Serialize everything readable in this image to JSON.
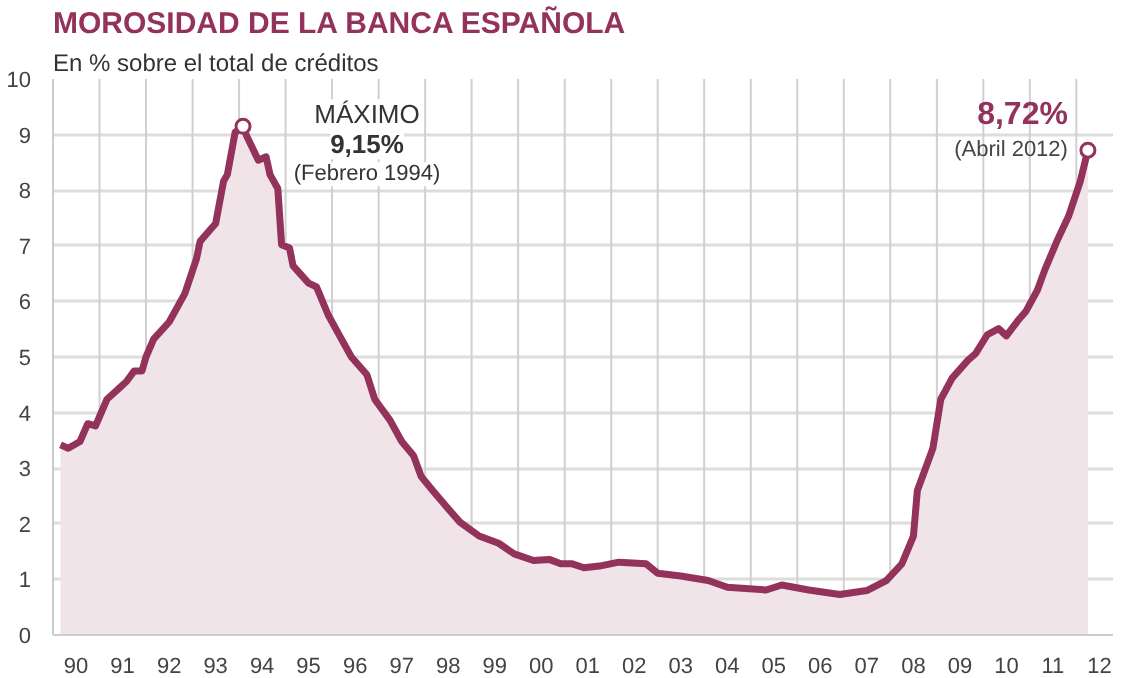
{
  "chart_data": {
    "type": "area",
    "title": "MOROSIDAD DE LA BANCA ESPAÑOLA",
    "subtitle": "En % sobre el total de créditos",
    "series": [
      {
        "color": "#93325a",
        "x": [
          "1990-03",
          "1990-05",
          "1990-08",
          "1990-10",
          "1990-12",
          "1991-03",
          "1991-06",
          "1991-08",
          "1991-10",
          "1991-12",
          "1992-01",
          "1992-03",
          "1992-07",
          "1992-11",
          "1993-02",
          "1993-03",
          "1993-07",
          "1993-09",
          "1993-10",
          "1993-12",
          "1994-02",
          "1994-03",
          "1994-06",
          "1994-08",
          "1994-09",
          "1994-11",
          "1994-12",
          "1995-02",
          "1995-03",
          "1995-07",
          "1995-09",
          "1995-12",
          "1996-03",
          "1996-06",
          "1996-10",
          "1996-12",
          "1997-04",
          "1997-07",
          "1997-10",
          "1997-12",
          "1998-03",
          "1998-06",
          "1998-10",
          "1999-03",
          "1999-08",
          "1999-12",
          "2000-05",
          "2000-09",
          "2000-12",
          "2001-03",
          "2001-06",
          "2001-10",
          "2002-03",
          "2002-10",
          "2003-01",
          "2003-07",
          "2004-02",
          "2004-07",
          "2005-05",
          "2005-09",
          "2006-04",
          "2006-12",
          "2007-07",
          "2007-12",
          "2008-04",
          "2008-07",
          "2008-08",
          "2008-12",
          "2009-02",
          "2009-05",
          "2009-09",
          "2009-11",
          "2010-02",
          "2010-05",
          "2010-07",
          "2010-10",
          "2010-12",
          "2011-03",
          "2011-05",
          "2011-08",
          "2011-11",
          "2012-02",
          "2012-04"
        ],
        "values": [
          3.42,
          3.36,
          3.48,
          3.8,
          3.76,
          4.24,
          4.43,
          4.56,
          4.75,
          4.75,
          5.0,
          5.32,
          5.63,
          6.14,
          6.77,
          7.08,
          7.4,
          8.16,
          8.28,
          9.04,
          9.15,
          8.98,
          8.54,
          8.6,
          8.28,
          8.03,
          7.02,
          6.96,
          6.64,
          6.33,
          6.26,
          5.76,
          5.38,
          5.0,
          4.68,
          4.24,
          3.86,
          3.48,
          3.23,
          2.85,
          2.6,
          2.35,
          2.03,
          1.78,
          1.65,
          1.46,
          1.34,
          1.36,
          1.28,
          1.28,
          1.21,
          1.24,
          1.31,
          1.28,
          1.11,
          1.06,
          0.98,
          0.86,
          0.81,
          0.9,
          0.81,
          0.73,
          0.8,
          0.98,
          1.28,
          1.78,
          2.6,
          3.36,
          4.24,
          4.62,
          4.94,
          5.06,
          5.4,
          5.51,
          5.38,
          5.66,
          5.82,
          6.2,
          6.58,
          7.08,
          7.53,
          8.16,
          8.72
        ]
      }
    ],
    "xlim": [
      "1990-01-01",
      "2012-10-15"
    ],
    "ylim": [
      0,
      10
    ],
    "yticks": [
      0,
      1,
      2,
      3,
      4,
      5,
      6,
      7,
      8,
      9,
      10
    ],
    "xticks": [
      {
        "value": "1990-07-01",
        "label": "90"
      },
      {
        "value": "1991-07-01",
        "label": "91"
      },
      {
        "value": "1992-07-01",
        "label": "92"
      },
      {
        "value": "1993-07-01",
        "label": "93"
      },
      {
        "value": "1994-07-01",
        "label": "94"
      },
      {
        "value": "1995-07-01",
        "label": "95"
      },
      {
        "value": "1996-07-01",
        "label": "96"
      },
      {
        "value": "1997-07-01",
        "label": "97"
      },
      {
        "value": "1998-07-01",
        "label": "98"
      },
      {
        "value": "1999-07-01",
        "label": "99"
      },
      {
        "value": "2000-07-01",
        "label": "00"
      },
      {
        "value": "2001-07-01",
        "label": "01"
      },
      {
        "value": "2002-07-01",
        "label": "02"
      },
      {
        "value": "2003-07-01",
        "label": "03"
      },
      {
        "value": "2004-07-01",
        "label": "04"
      },
      {
        "value": "2005-07-01",
        "label": "05"
      },
      {
        "value": "2006-07-01",
        "label": "06"
      },
      {
        "value": "2007-07-01",
        "label": "07"
      },
      {
        "value": "2008-07-01",
        "label": "08"
      },
      {
        "value": "2009-07-01",
        "label": "09"
      },
      {
        "value": "2010-07-01",
        "label": "10"
      },
      {
        "value": "2011-07-01",
        "label": "11"
      },
      {
        "value": "2012-07-01",
        "label": "12"
      },
      {
        "value": "1991-01-01",
        "label": null
      },
      {
        "value": "1992-01-01",
        "label": null
      },
      {
        "value": "1993-01-01",
        "label": null
      },
      {
        "value": "1994-01-01",
        "label": null
      },
      {
        "value": "1995-01-01",
        "label": null
      },
      {
        "value": "1996-01-01",
        "label": null
      },
      {
        "value": "1997-01-01",
        "label": null
      },
      {
        "value": "1998-01-01",
        "label": null
      },
      {
        "value": "1999-01-01",
        "label": null
      },
      {
        "value": "2000-01-01",
        "label": null
      },
      {
        "value": "2001-01-01",
        "label": null
      },
      {
        "value": "2002-01-01",
        "label": null
      },
      {
        "value": "2003-01-01",
        "label": null
      },
      {
        "value": "2004-01-01",
        "label": null
      },
      {
        "value": "2005-01-01",
        "label": null
      },
      {
        "value": "2006-01-01",
        "label": null
      },
      {
        "value": "2007-01-01",
        "label": null
      },
      {
        "value": "2008-01-01",
        "label": null
      },
      {
        "value": "2009-01-01",
        "label": null
      },
      {
        "value": "2010-01-01",
        "label": null
      },
      {
        "value": "2011-01-01",
        "label": null
      },
      {
        "value": "2012-01-01",
        "label": null
      }
    ],
    "annotations": [
      {
        "text": "MÁXIMO\n9,15%\n(Febrero 1994)",
        "x": "1994-02",
        "y": 9.15
      },
      {
        "text": "8,72%\n(Abril 2012)",
        "x": "2012-04",
        "y": 8.72
      }
    ],
    "grid": true,
    "marker": "none",
    "line_style": "solid"
  }
}
